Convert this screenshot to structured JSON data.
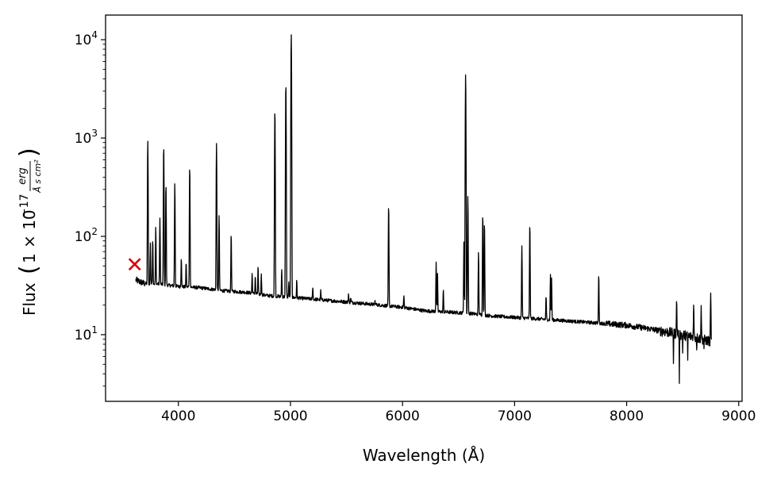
{
  "chart_data": {
    "type": "line",
    "title": "",
    "xlabel": "Wavelength (Å)",
    "ylabel_main": "Flux",
    "ylabel_unit": {
      "factor": "1 × 10",
      "exponent": "−17",
      "numerator": "erg",
      "denominator": "Å s cm²"
    },
    "x_ticks": [
      {
        "value": 4000,
        "label": "4000"
      },
      {
        "value": 5000,
        "label": "5000"
      },
      {
        "value": 6000,
        "label": "6000"
      },
      {
        "value": 7000,
        "label": "7000"
      },
      {
        "value": 8000,
        "label": "8000"
      },
      {
        "value": 9000,
        "label": "9000"
      }
    ],
    "y_ticks": [
      {
        "value": 10,
        "base": "10",
        "exp": "1"
      },
      {
        "value": 100,
        "base": "10",
        "exp": "2"
      },
      {
        "value": 1000,
        "base": "10",
        "exp": "3"
      },
      {
        "value": 10000,
        "base": "10",
        "exp": "4"
      }
    ],
    "xlim": [
      3350,
      9030
    ],
    "ylim": [
      2.1,
      17800
    ],
    "yscale": "log",
    "grid": false,
    "line_color": "#000000",
    "marker": {
      "x": 3610,
      "y": 52,
      "symbol": "x",
      "color": "#dd0000"
    },
    "continuum": [
      [
        3620,
        36
      ],
      [
        3700,
        33
      ],
      [
        3800,
        33
      ],
      [
        3900,
        32
      ],
      [
        4000,
        31
      ],
      [
        4200,
        30
      ],
      [
        4400,
        28
      ],
      [
        4600,
        27
      ],
      [
        4800,
        25
      ],
      [
        5000,
        24
      ],
      [
        5200,
        23
      ],
      [
        5400,
        22
      ],
      [
        5600,
        21
      ],
      [
        5800,
        20
      ],
      [
        6000,
        19
      ],
      [
        6200,
        17.5
      ],
      [
        6400,
        17
      ],
      [
        6600,
        16.5
      ],
      [
        6800,
        15.5
      ],
      [
        7000,
        15
      ],
      [
        7200,
        14.5
      ],
      [
        7400,
        14
      ],
      [
        7600,
        13.5
      ],
      [
        7800,
        13
      ],
      [
        8000,
        12.5
      ],
      [
        8200,
        11.5
      ],
      [
        8400,
        10.5
      ],
      [
        8600,
        9.5
      ],
      [
        8760,
        8.5
      ]
    ],
    "emission_lines": [
      {
        "x": 3727,
        "peak": 950
      },
      {
        "x": 3750,
        "peak": 85
      },
      {
        "x": 3771,
        "peak": 95
      },
      {
        "x": 3798,
        "peak": 125
      },
      {
        "x": 3835,
        "peak": 155
      },
      {
        "x": 3869,
        "peak": 840
      },
      {
        "x": 3889,
        "peak": 345
      },
      {
        "x": 3968,
        "peak": 350
      },
      {
        "x": 4026,
        "peak": 62
      },
      {
        "x": 4069,
        "peak": 55
      },
      {
        "x": 4101,
        "peak": 520
      },
      {
        "x": 4340,
        "peak": 880
      },
      {
        "x": 4363,
        "peak": 165
      },
      {
        "x": 4471,
        "peak": 108
      },
      {
        "x": 4658,
        "peak": 42
      },
      {
        "x": 4686,
        "peak": 40
      },
      {
        "x": 4711,
        "peak": 50
      },
      {
        "x": 4740,
        "peak": 42
      },
      {
        "x": 4861,
        "peak": 1950
      },
      {
        "x": 4922,
        "peak": 47
      },
      {
        "x": 4959,
        "peak": 3600
      },
      {
        "x": 4985,
        "peak": 35
      },
      {
        "x": 5007,
        "peak": 11500
      },
      {
        "x": 5056,
        "peak": 36
      },
      {
        "x": 5199,
        "peak": 31
      },
      {
        "x": 5270,
        "peak": 28
      },
      {
        "x": 5518,
        "peak": 26
      },
      {
        "x": 5538,
        "peak": 24
      },
      {
        "x": 5755,
        "peak": 22
      },
      {
        "x": 5876,
        "peak": 210
      },
      {
        "x": 6012,
        "peak": 25
      },
      {
        "x": 6300,
        "peak": 55
      },
      {
        "x": 6312,
        "peak": 42
      },
      {
        "x": 6364,
        "peak": 29
      },
      {
        "x": 6548,
        "peak": 90
      },
      {
        "x": 6563,
        "peak": 4500
      },
      {
        "x": 6583,
        "peak": 260
      },
      {
        "x": 6678,
        "peak": 70
      },
      {
        "x": 6716,
        "peak": 170
      },
      {
        "x": 6731,
        "peak": 140
      },
      {
        "x": 7065,
        "peak": 80
      },
      {
        "x": 7136,
        "peak": 135
      },
      {
        "x": 7281,
        "peak": 25
      },
      {
        "x": 7320,
        "peak": 41
      },
      {
        "x": 7330,
        "peak": 38
      },
      {
        "x": 7751,
        "peak": 42
      },
      {
        "x": 8446,
        "peak": 22
      },
      {
        "x": 8598,
        "peak": 20
      },
      {
        "x": 8665,
        "peak": 19
      },
      {
        "x": 8750,
        "peak": 26
      }
    ],
    "absorption_dips": [
      {
        "x": 8418,
        "low": 4.8
      },
      {
        "x": 8470,
        "low": 3.2
      },
      {
        "x": 8500,
        "low": 6.5
      },
      {
        "x": 8545,
        "low": 5.5
      },
      {
        "x": 8625,
        "low": 7.0
      },
      {
        "x": 8690,
        "low": 7.2
      }
    ]
  }
}
